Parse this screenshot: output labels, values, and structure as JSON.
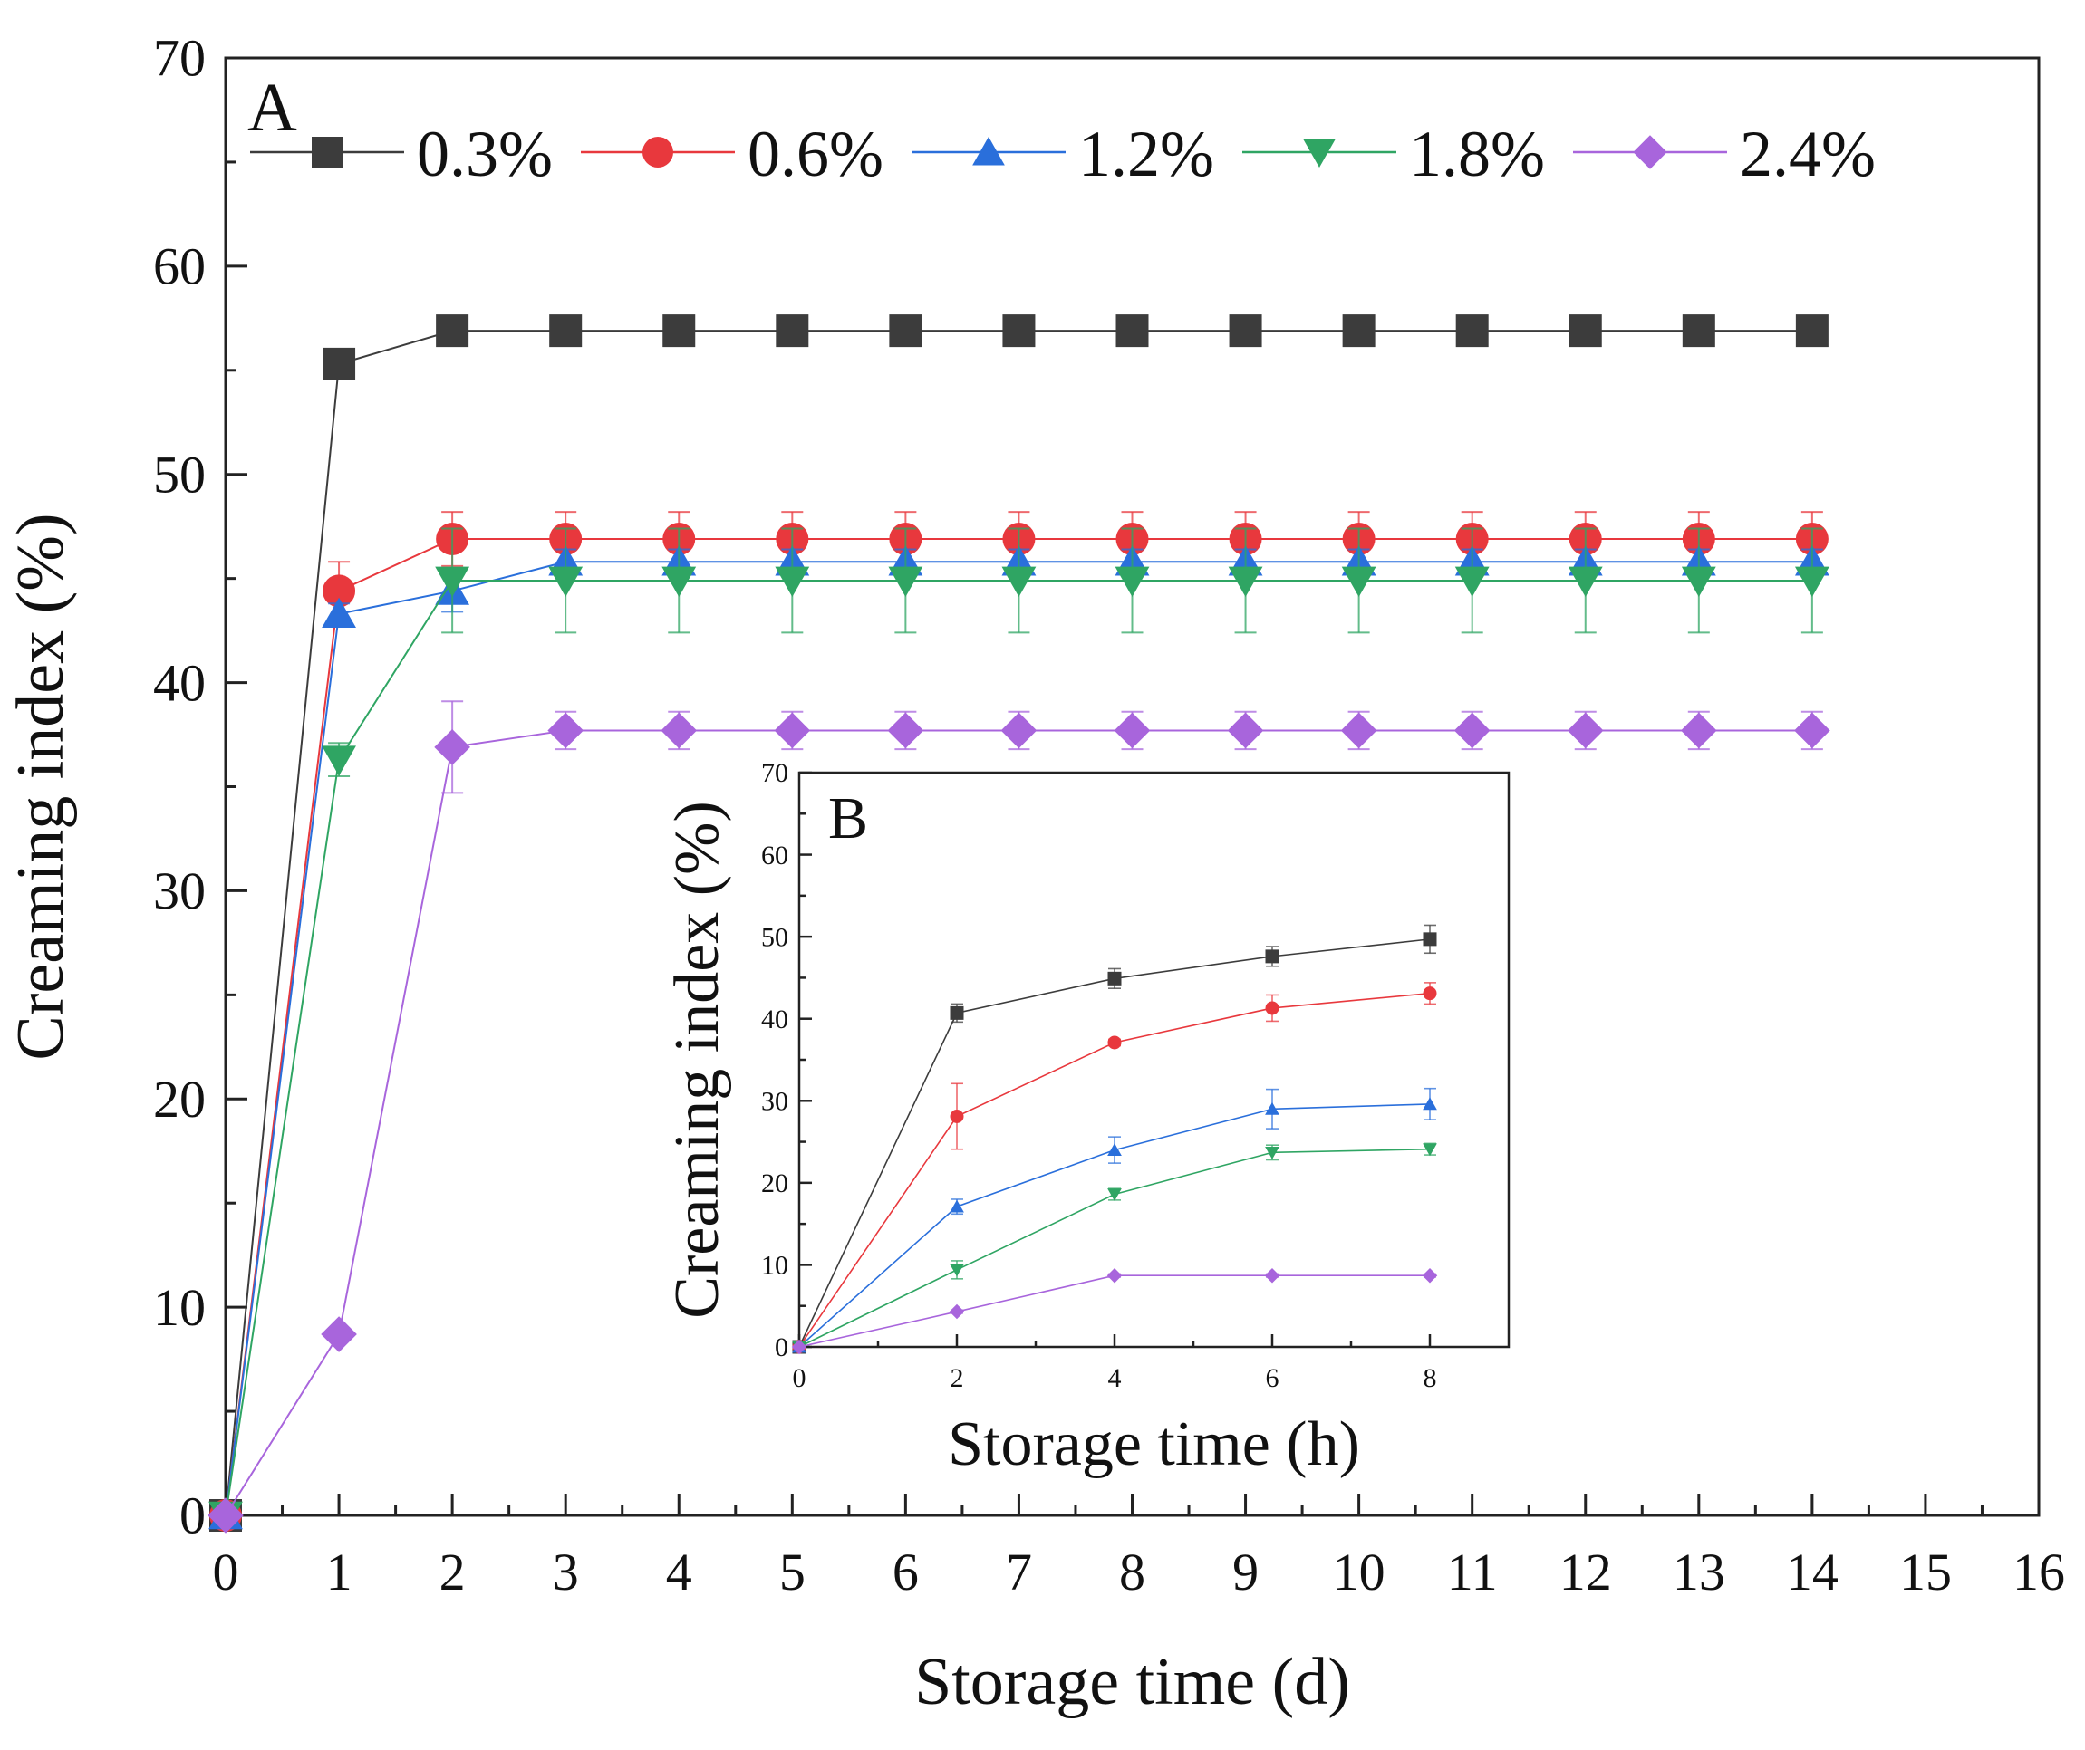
{
  "chart_data": [
    {
      "type": "line",
      "panel_label": "A",
      "title": "",
      "xlabel": "Storage time (d)",
      "ylabel": "Creaming index (%)",
      "xlim": [
        0,
        16
      ],
      "ylim": [
        0,
        70
      ],
      "xticks": [
        0,
        1,
        2,
        3,
        4,
        5,
        6,
        7,
        8,
        9,
        10,
        11,
        12,
        13,
        14,
        15,
        16
      ],
      "yticks": [
        0,
        10,
        20,
        30,
        40,
        50,
        60,
        70
      ],
      "grid": false,
      "legend": "top, horizontal",
      "x": [
        0,
        1,
        2,
        3,
        4,
        5,
        6,
        7,
        8,
        9,
        10,
        11,
        12,
        13,
        14
      ],
      "series": [
        {
          "name": "0.3%",
          "color": "#3c3c3c",
          "marker": "square",
          "values": [
            0,
            55.3,
            56.9,
            56.9,
            56.9,
            56.9,
            56.9,
            56.9,
            56.9,
            56.9,
            56.9,
            56.9,
            56.9,
            56.9,
            56.9
          ],
          "errors": [
            0,
            0.6,
            0.3,
            0.3,
            0.3,
            0.3,
            0.3,
            0.3,
            0.3,
            0.3,
            0.3,
            0.3,
            0.3,
            0.3,
            0.3
          ]
        },
        {
          "name": "0.6%",
          "color": "#e8383d",
          "marker": "circle",
          "values": [
            0,
            44.4,
            46.9,
            46.9,
            46.9,
            46.9,
            46.9,
            46.9,
            46.9,
            46.9,
            46.9,
            46.9,
            46.9,
            46.9,
            46.9
          ],
          "errors": [
            0,
            1.4,
            1.3,
            1.3,
            1.3,
            1.3,
            1.3,
            1.3,
            1.3,
            1.3,
            1.3,
            1.3,
            1.3,
            1.3,
            1.3
          ]
        },
        {
          "name": "1.2%",
          "color": "#2a6fdb",
          "marker": "triangle-up",
          "values": [
            0,
            43.3,
            44.4,
            45.8,
            45.8,
            45.8,
            45.8,
            45.8,
            45.8,
            45.8,
            45.8,
            45.8,
            45.8,
            45.8,
            45.8
          ],
          "errors": [
            0,
            0.5,
            1.0,
            0.6,
            0.6,
            0.6,
            0.6,
            0.6,
            0.6,
            0.6,
            0.6,
            0.6,
            0.6,
            0.6,
            0.6
          ]
        },
        {
          "name": "1.8%",
          "color": "#2fa563",
          "marker": "triangle-down",
          "values": [
            0,
            36.3,
            44.9,
            44.9,
            44.9,
            44.9,
            44.9,
            44.9,
            44.9,
            44.9,
            44.9,
            44.9,
            44.9,
            44.9,
            44.9
          ],
          "errors": [
            0,
            0.8,
            2.5,
            2.5,
            2.5,
            2.5,
            2.5,
            2.5,
            2.5,
            2.5,
            2.5,
            2.5,
            2.5,
            2.5,
            2.5
          ]
        },
        {
          "name": "2.4%",
          "color": "#a865dc",
          "marker": "diamond",
          "values": [
            0,
            8.7,
            36.9,
            37.7,
            37.7,
            37.7,
            37.7,
            37.7,
            37.7,
            37.7,
            37.7,
            37.7,
            37.7,
            37.7,
            37.7
          ],
          "errors": [
            0,
            0.3,
            2.2,
            0.9,
            0.9,
            0.9,
            0.9,
            0.9,
            0.9,
            0.9,
            0.9,
            0.9,
            0.9,
            0.9,
            0.9
          ]
        }
      ]
    },
    {
      "type": "line",
      "panel_label": "B",
      "title": "",
      "xlabel": "Storage time (h)",
      "ylabel": "Creaming index (%)",
      "xlim": [
        0,
        9
      ],
      "ylim": [
        0,
        70
      ],
      "xticks": [
        0,
        2,
        4,
        6,
        8
      ],
      "yticks": [
        0,
        10,
        20,
        30,
        40,
        50,
        60,
        70
      ],
      "grid": false,
      "x": [
        0,
        2,
        4,
        6,
        8
      ],
      "series": [
        {
          "name": "0.3%",
          "color": "#3c3c3c",
          "marker": "square",
          "values": [
            0,
            40.7,
            44.9,
            47.6,
            49.7
          ],
          "errors": [
            0,
            1.1,
            1.2,
            1.2,
            1.7
          ]
        },
        {
          "name": "0.6%",
          "color": "#e8383d",
          "marker": "circle",
          "values": [
            0,
            28.1,
            37.1,
            41.3,
            43.1
          ],
          "errors": [
            0,
            4.0,
            0.4,
            1.6,
            1.3
          ]
        },
        {
          "name": "1.2%",
          "color": "#2a6fdb",
          "marker": "triangle-up",
          "values": [
            0,
            17.1,
            24.0,
            29.0,
            29.6
          ],
          "errors": [
            0,
            0.9,
            1.6,
            2.4,
            1.9
          ]
        },
        {
          "name": "1.8%",
          "color": "#2fa563",
          "marker": "triangle-down",
          "values": [
            0,
            9.4,
            18.6,
            23.7,
            24.1
          ],
          "errors": [
            0,
            1.1,
            0.7,
            0.9,
            0.7
          ]
        },
        {
          "name": "2.4%",
          "color": "#a865dc",
          "marker": "diamond",
          "values": [
            0,
            4.3,
            8.7,
            8.7,
            8.7
          ],
          "errors": [
            0,
            0.2,
            0.2,
            0.2,
            0.2
          ]
        }
      ]
    }
  ]
}
